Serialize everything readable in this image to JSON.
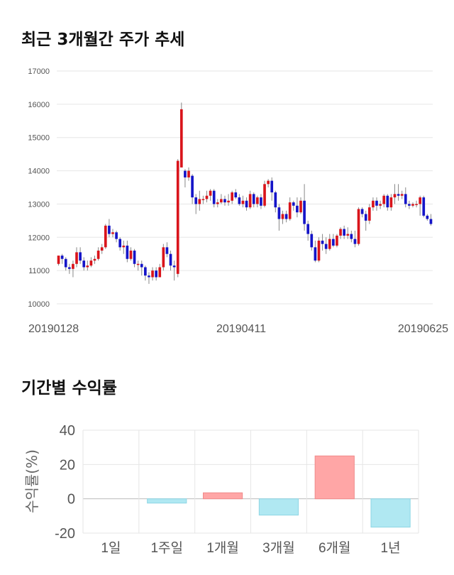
{
  "sections": {
    "price_title": "최근 3개월간 주가 추세",
    "returns_title": "기간별 수익률"
  },
  "colors": {
    "up": "#d9141b",
    "down": "#1414c8",
    "positive_bar": "#ffa6a6",
    "negative_bar": "#b0e8f2",
    "grid": "#e6e6e6"
  },
  "chart_data": [
    {
      "type": "candlestick",
      "title": "최근 3개월간 주가 추세",
      "ylim": [
        10000,
        17000
      ],
      "y_ticks": [
        "10000",
        "11000",
        "12000",
        "13000",
        "14000",
        "15000",
        "16000",
        "17000"
      ],
      "x_ticks": [
        "20190128",
        "20190411",
        "20190625"
      ],
      "grid": true,
      "candles": [
        [
          11200,
          11450,
          11150,
          11450
        ],
        [
          11450,
          11350,
          11200,
          11500
        ],
        [
          11350,
          11100,
          11000,
          11400
        ],
        [
          11100,
          11050,
          10900,
          11200
        ],
        [
          11050,
          11200,
          10800,
          11300
        ],
        [
          11200,
          11550,
          11100,
          11700
        ],
        [
          11550,
          11300,
          11200,
          11700
        ],
        [
          11300,
          11100,
          11000,
          11400
        ],
        [
          11100,
          11150,
          11000,
          11300
        ],
        [
          11150,
          11300,
          11100,
          11400
        ],
        [
          11300,
          11350,
          11200,
          11450
        ],
        [
          11350,
          11600,
          11300,
          11700
        ],
        [
          11600,
          11700,
          11500,
          11800
        ],
        [
          11700,
          12350,
          11650,
          12400
        ],
        [
          12350,
          12100,
          12000,
          12550
        ],
        [
          12100,
          12150,
          12000,
          12250
        ],
        [
          12150,
          11950,
          11850,
          12200
        ],
        [
          11950,
          11700,
          11600,
          12000
        ],
        [
          11700,
          11750,
          11500,
          11900
        ],
        [
          11750,
          11350,
          11250,
          11900
        ],
        [
          11350,
          11600,
          11300,
          11700
        ],
        [
          11600,
          11200,
          11100,
          11650
        ],
        [
          11200,
          11200,
          11000,
          11300
        ],
        [
          11200,
          11100,
          10850,
          11300
        ],
        [
          11100,
          10850,
          10700,
          11150
        ],
        [
          10850,
          10800,
          10600,
          10950
        ],
        [
          10800,
          11000,
          10700,
          11100
        ],
        [
          11000,
          10800,
          10700,
          11100
        ],
        [
          10800,
          11100,
          10800,
          11200
        ],
        [
          11100,
          11700,
          11000,
          11800
        ],
        [
          11700,
          11500,
          11400,
          11850
        ],
        [
          11500,
          11150,
          11000,
          11600
        ],
        [
          11150,
          11100,
          10700,
          11300
        ],
        [
          10900,
          14300,
          10800,
          14350
        ],
        [
          14100,
          15850,
          14100,
          16050
        ],
        [
          14000,
          13800,
          13500,
          14050
        ],
        [
          13800,
          14000,
          13700,
          14100
        ],
        [
          13850,
          13200,
          13000,
          13900
        ],
        [
          13200,
          13000,
          12700,
          13300
        ],
        [
          13000,
          13150,
          12800,
          13400
        ],
        [
          13150,
          13150,
          13000,
          13250
        ],
        [
          13150,
          13250,
          13050,
          13400
        ],
        [
          13250,
          13400,
          13100,
          13450
        ],
        [
          13400,
          13000,
          12900,
          13450
        ],
        [
          13000,
          13050,
          12900,
          13150
        ],
        [
          13050,
          13150,
          13000,
          13300
        ],
        [
          13150,
          13050,
          12950,
          13250
        ],
        [
          13050,
          13100,
          12950,
          13300
        ],
        [
          13100,
          13350,
          13000,
          13400
        ],
        [
          13350,
          13200,
          13150,
          13450
        ],
        [
          13200,
          13000,
          12950,
          13300
        ],
        [
          13000,
          13100,
          12900,
          13250
        ],
        [
          13100,
          12900,
          12800,
          13200
        ],
        [
          12900,
          13300,
          12850,
          13400
        ],
        [
          13300,
          13000,
          12900,
          13350
        ],
        [
          13000,
          13200,
          12900,
          13250
        ],
        [
          13200,
          12950,
          12850,
          13300
        ],
        [
          12950,
          13600,
          12900,
          13700
        ],
        [
          13600,
          13700,
          13500,
          13750
        ],
        [
          13700,
          13350,
          13100,
          13800
        ],
        [
          13350,
          12900,
          12750,
          13400
        ],
        [
          12900,
          12550,
          12200,
          13000
        ],
        [
          12550,
          12700,
          12400,
          12800
        ],
        [
          12700,
          12550,
          12450,
          12800
        ],
        [
          12550,
          13050,
          12500,
          13200
        ],
        [
          13050,
          12950,
          12800,
          13100
        ],
        [
          12950,
          12750,
          12600,
          13200
        ],
        [
          12750,
          13100,
          12700,
          13200
        ],
        [
          13100,
          12400,
          12200,
          13600
        ],
        [
          12400,
          12100,
          11900,
          12500
        ],
        [
          12100,
          11700,
          11600,
          12200
        ],
        [
          11700,
          11300,
          11250,
          11900
        ],
        [
          11300,
          11900,
          11250,
          12000
        ],
        [
          11900,
          11800,
          11600,
          12100
        ],
        [
          11800,
          11650,
          11500,
          12000
        ],
        [
          11650,
          11950,
          11600,
          12100
        ],
        [
          11950,
          11750,
          11700,
          12100
        ],
        [
          11750,
          12050,
          11700,
          12100
        ],
        [
          12050,
          12250,
          11950,
          12300
        ],
        [
          12250,
          12050,
          11950,
          12350
        ],
        [
          12050,
          12100,
          11950,
          12300
        ],
        [
          12100,
          11950,
          11850,
          12200
        ],
        [
          11950,
          11800,
          11700,
          12200
        ],
        [
          11800,
          12850,
          11750,
          12900
        ],
        [
          12850,
          12700,
          12600,
          12900
        ],
        [
          12700,
          12500,
          12200,
          12800
        ],
        [
          12500,
          12900,
          12400,
          13000
        ],
        [
          12900,
          13100,
          12800,
          13200
        ],
        [
          13100,
          12950,
          12800,
          13200
        ],
        [
          12950,
          13000,
          12850,
          13100
        ],
        [
          13000,
          13250,
          12900,
          13300
        ],
        [
          13250,
          12900,
          12800,
          13300
        ],
        [
          12900,
          13200,
          12800,
          13300
        ],
        [
          13200,
          13300,
          13000,
          13600
        ],
        [
          13300,
          13250,
          13100,
          13600
        ],
        [
          13250,
          13300,
          13150,
          13400
        ],
        [
          13300,
          13000,
          12900,
          13500
        ],
        [
          13000,
          12950,
          12850,
          13100
        ],
        [
          12950,
          13000,
          12900,
          13050
        ],
        [
          13000,
          13000,
          12900,
          13100
        ],
        [
          13000,
          13200,
          12650,
          13250
        ],
        [
          13200,
          12650,
          12600,
          13250
        ],
        [
          12650,
          12550,
          12500,
          12700
        ],
        [
          12550,
          12400,
          12350,
          12700
        ]
      ]
    },
    {
      "type": "bar",
      "title": "기간별 수익률",
      "ylabel": "수익률(%)",
      "ylim": [
        -20,
        40
      ],
      "y_ticks": [
        "40",
        "20",
        "0",
        "-20"
      ],
      "categories": [
        "1일",
        "1주일",
        "1개월",
        "3개월",
        "6개월",
        "1년"
      ],
      "values": [
        0,
        -2.5,
        3.5,
        -9.5,
        25,
        -16.5
      ],
      "grid": true
    }
  ]
}
